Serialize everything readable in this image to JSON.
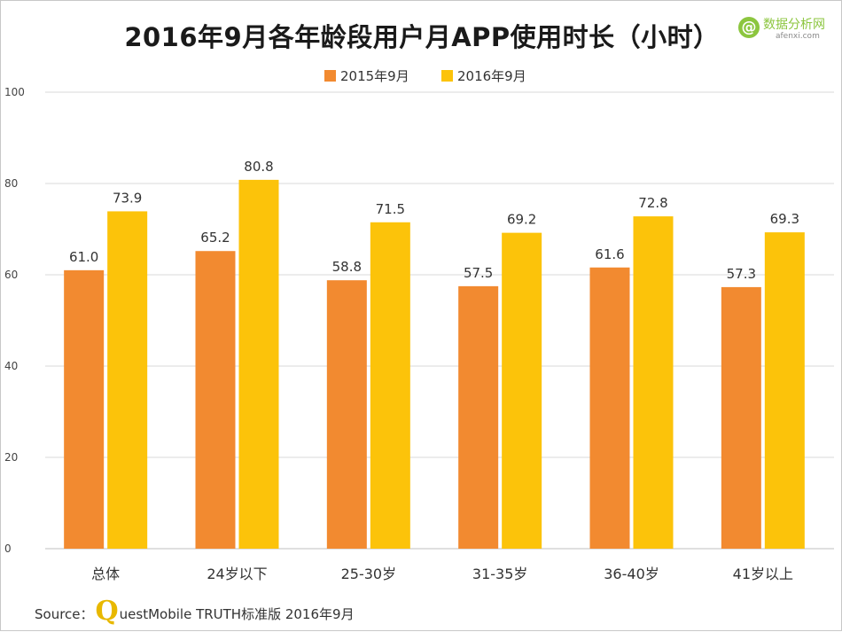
{
  "title": "2016年9月各年龄段用户月APP使用时长（小时）",
  "logo": {
    "name": "数据分析网",
    "url": "afenxi.com",
    "icon": "at-sign-icon"
  },
  "source": {
    "prefix": "Source：",
    "q": "Q",
    "rest": "uestMobile TRUTH标准版 2016年9月"
  },
  "colors": {
    "s2015": "#f28a30",
    "s2016": "#fcc30a",
    "grid": "#d9d9d9",
    "axis": "#bfbfbf"
  },
  "chart_data": {
    "type": "bar",
    "title": "2016年9月各年龄段用户月APP使用时长（小时）",
    "categories": [
      "总体",
      "24岁以下",
      "25-30岁",
      "31-35岁",
      "36-40岁",
      "41岁以上"
    ],
    "series": [
      {
        "name": "2015年9月",
        "values": [
          61.0,
          65.2,
          58.8,
          57.5,
          61.6,
          57.3
        ]
      },
      {
        "name": "2016年9月",
        "values": [
          73.9,
          80.8,
          71.5,
          69.2,
          72.8,
          69.3
        ]
      }
    ],
    "ylim": [
      0,
      100
    ],
    "yticks": [
      0,
      20,
      40,
      60,
      80,
      100
    ],
    "grid": true,
    "legend": "top-center",
    "xlabel": "",
    "ylabel": ""
  }
}
